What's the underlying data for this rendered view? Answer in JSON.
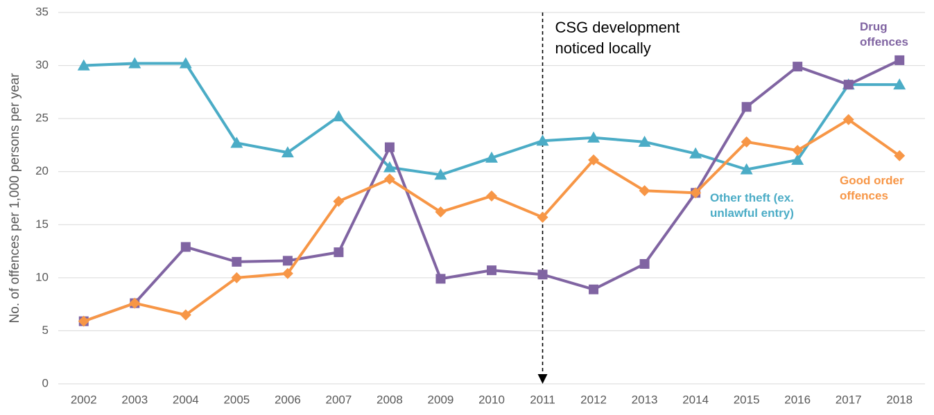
{
  "chart_data": {
    "type": "line",
    "y_label": "No. of offences per 1,000 persons per year",
    "categories": [
      "2002",
      "2003",
      "2004",
      "2005",
      "2006",
      "2007",
      "2008",
      "2009",
      "2010",
      "2011",
      "2012",
      "2013",
      "2014",
      "2015",
      "2016",
      "2017",
      "2018"
    ],
    "series": [
      {
        "name": "Other theft (ex. unlawful entry)",
        "color": "#4bacc6",
        "marker": "triangle",
        "values": [
          30.0,
          30.2,
          30.2,
          22.7,
          21.8,
          25.2,
          20.4,
          19.7,
          21.3,
          22.9,
          23.2,
          22.8,
          21.7,
          20.2,
          21.1,
          28.2,
          28.2
        ]
      },
      {
        "name": "Drug offences",
        "color": "#8064a2",
        "marker": "square",
        "values": [
          5.9,
          7.6,
          12.9,
          11.5,
          11.6,
          12.4,
          22.3,
          9.9,
          10.7,
          10.3,
          8.9,
          11.3,
          18.0,
          26.1,
          29.9,
          28.2,
          30.5
        ]
      },
      {
        "name": "Good order offences",
        "color": "#f79646",
        "marker": "diamond",
        "values": [
          5.9,
          7.6,
          6.5,
          10.0,
          10.4,
          17.2,
          19.3,
          16.2,
          17.7,
          15.7,
          21.1,
          18.2,
          18.0,
          22.8,
          22.0,
          24.9,
          21.5
        ]
      }
    ],
    "annotation": {
      "text": "CSG development noticed locally",
      "x": "2011"
    },
    "ylim": [
      0,
      35
    ],
    "yticks": [
      0,
      5,
      10,
      15,
      20,
      25,
      30,
      35
    ],
    "grid": true
  }
}
